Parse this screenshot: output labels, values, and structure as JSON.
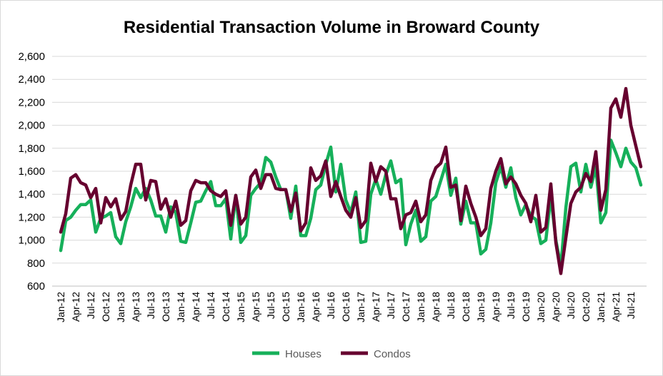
{
  "chart_data": {
    "type": "line",
    "title": "Residential Transaction Volume in Broward County",
    "xlabel": "",
    "ylabel": "",
    "ylim": [
      600,
      2600
    ],
    "yticks": [
      "600",
      "800",
      "1,000",
      "1,200",
      "1,400",
      "1,600",
      "1,800",
      "2,000",
      "2,200",
      "2,400",
      "2,600"
    ],
    "x_tick_labels": [
      "Jan-12",
      "Apr-12",
      "Jul-12",
      "Oct-12",
      "Jan-13",
      "Apr-13",
      "Jul-13",
      "Oct-13",
      "Jan-14",
      "Apr-14",
      "Jul-14",
      "Oct-14",
      "Jan-15",
      "Apr-15",
      "Jul-15",
      "Oct-15",
      "Jan-16",
      "Apr-16",
      "Jul-16",
      "Oct-16",
      "Jan-17",
      "Apr-17",
      "Jul-17",
      "Oct-17",
      "Jan-18",
      "Apr-18",
      "Jul-18",
      "Oct-18",
      "Jan-19",
      "Apr-19",
      "Jul-19",
      "Oct-19",
      "Jan-20",
      "Apr-20",
      "Jul-20",
      "Oct-20",
      "Jan-21",
      "Apr-21",
      "Jul-21"
    ],
    "grid": true,
    "legend_position": "bottom",
    "series": [
      {
        "name": "Houses",
        "color": "#16b05a",
        "values": [
          910,
          1170,
          1200,
          1260,
          1310,
          1310,
          1350,
          1070,
          1190,
          1210,
          1240,
          1030,
          970,
          1160,
          1290,
          1450,
          1370,
          1450,
          1350,
          1210,
          1210,
          1070,
          1290,
          1240,
          990,
          980,
          1150,
          1330,
          1340,
          1430,
          1510,
          1300,
          1300,
          1360,
          1010,
          1390,
          980,
          1040,
          1390,
          1450,
          1500,
          1720,
          1680,
          1550,
          1440,
          1440,
          1190,
          1470,
          1040,
          1040,
          1190,
          1440,
          1480,
          1660,
          1810,
          1420,
          1660,
          1350,
          1240,
          1420,
          980,
          990,
          1400,
          1530,
          1400,
          1570,
          1690,
          1500,
          1530,
          960,
          1140,
          1260,
          990,
          1030,
          1340,
          1380,
          1520,
          1660,
          1390,
          1540,
          1140,
          1340,
          1150,
          1150,
          880,
          920,
          1150,
          1500,
          1640,
          1460,
          1630,
          1370,
          1220,
          1310,
          1210,
          1180,
          970,
          1000,
          1380,
          1000,
          770,
          1280,
          1640,
          1670,
          1420,
          1660,
          1460,
          1640,
          1150,
          1240,
          1870,
          1760,
          1640,
          1800,
          1680,
          1630,
          1480
        ]
      },
      {
        "name": "Condos",
        "color": "#66002f",
        "values": [
          1070,
          1230,
          1540,
          1570,
          1500,
          1480,
          1370,
          1450,
          1150,
          1370,
          1290,
          1360,
          1180,
          1250,
          1480,
          1660,
          1660,
          1350,
          1520,
          1510,
          1270,
          1360,
          1200,
          1340,
          1130,
          1170,
          1430,
          1520,
          1500,
          1500,
          1430,
          1400,
          1380,
          1430,
          1130,
          1390,
          1140,
          1200,
          1550,
          1610,
          1450,
          1570,
          1570,
          1450,
          1440,
          1440,
          1250,
          1410,
          1080,
          1150,
          1630,
          1520,
          1560,
          1690,
          1380,
          1510,
          1380,
          1260,
          1200,
          1370,
          1110,
          1170,
          1670,
          1510,
          1640,
          1600,
          1360,
          1360,
          1100,
          1220,
          1240,
          1340,
          1160,
          1220,
          1520,
          1630,
          1670,
          1810,
          1460,
          1480,
          1170,
          1470,
          1320,
          1200,
          1040,
          1100,
          1450,
          1600,
          1710,
          1490,
          1550,
          1490,
          1390,
          1320,
          1160,
          1390,
          1070,
          1110,
          1490,
          980,
          710,
          1020,
          1320,
          1420,
          1460,
          1580,
          1510,
          1770,
          1260,
          1440,
          2150,
          2230,
          2070,
          2320,
          2000,
          1820,
          1640
        ]
      }
    ]
  }
}
